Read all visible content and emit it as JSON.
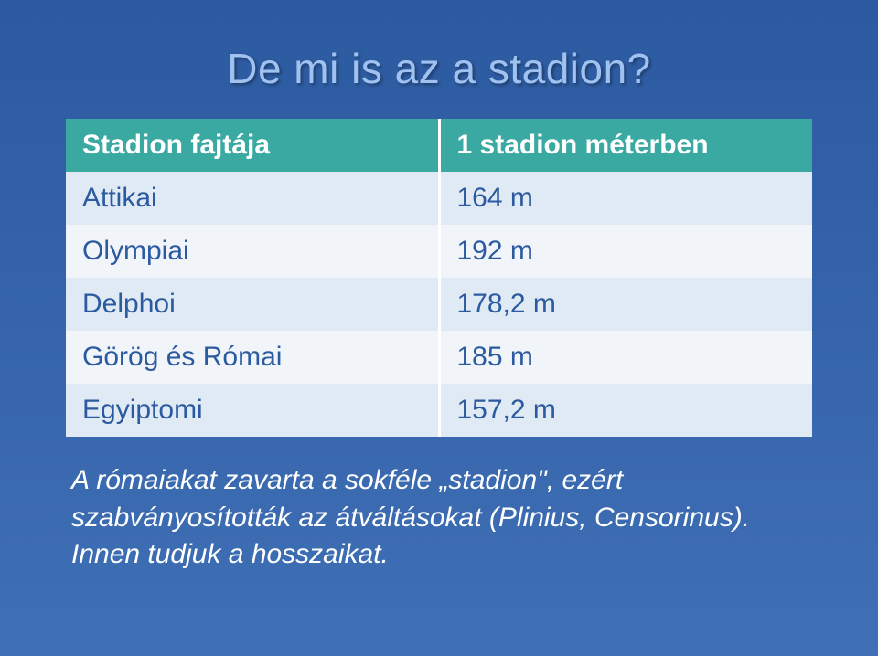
{
  "colors": {
    "slide_bg_top": "#2c5aa0",
    "slide_bg_bottom": "#3f6fb5",
    "title_color": "#9fc2f0",
    "header_bg": "#3aa9a2",
    "header_text": "#ffffff",
    "row_odd_bg": "#dfeaf5",
    "row_even_bg": "#f1f5fa",
    "cell_text": "#2c5aa0",
    "cell_border": "#ffffff",
    "footnote_color": "#ffffff"
  },
  "layout": {
    "title_fontsize": 46,
    "cell_fontsize": 30,
    "footnote_fontsize": 30,
    "col1_width_pct": 50,
    "col2_width_pct": 50
  },
  "title": "De mi is az a stadion?",
  "table": {
    "headers": [
      "Stadion fajtája",
      "1 stadion méterben"
    ],
    "rows": [
      [
        "Attikai",
        "164 m"
      ],
      [
        "Olympiai",
        "192 m"
      ],
      [
        "Delphoi",
        "178,2 m"
      ],
      [
        "Görög és Római",
        "185 m"
      ],
      [
        "Egyiptomi",
        "157,2 m"
      ]
    ]
  },
  "footnote": "A rómaiakat zavarta a sokféle „stadion\", ezért szabványosították az átváltásokat (Plinius, Censorinus). Innen tudjuk a hosszaikat."
}
